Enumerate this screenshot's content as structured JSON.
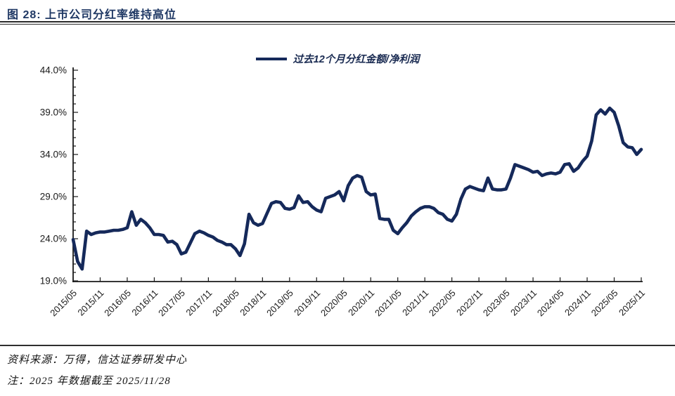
{
  "header": {
    "title": "图 28: 上市公司分红率维持高位"
  },
  "legend": {
    "label": "过去12个月分红金额/净利润"
  },
  "footer": {
    "source": "资料来源：万得，信达证券研发中心",
    "note": "注：2025 年数据截至 2025/11/28"
  },
  "colors": {
    "line_navy": "#15295a",
    "title_navy": "#1f3864",
    "axis_black": "#1a1a1a"
  },
  "chart_data": {
    "type": "line",
    "title": "上市公司分红率维持高位",
    "series_name": "过去12个月分红金额/净利润",
    "ylabel": "",
    "xlabel": "",
    "ylim": [
      19,
      44
    ],
    "y_tick_step": 5,
    "y_tick_labels": [
      "19.0%",
      "24.0%",
      "29.0%",
      "34.0%",
      "39.0%",
      "44.0%"
    ],
    "x_tick_every": 6,
    "x_tick_labels": [
      "2015/05",
      "2015/11",
      "2016/05",
      "2016/11",
      "2017/05",
      "2017/11",
      "2018/05",
      "2018/11",
      "2019/05",
      "2019/11",
      "2020/05",
      "2020/11",
      "2021/05",
      "2021/11",
      "2022/05",
      "2022/11",
      "2023/05",
      "2023/11",
      "2024/05",
      "2024/11",
      "2025/05",
      "2025/11"
    ],
    "grid": false,
    "legend_position": "top-center",
    "line_color": "#15295a",
    "x": [
      "2015/05",
      "2015/06",
      "2015/07",
      "2015/08",
      "2015/09",
      "2015/10",
      "2015/11",
      "2015/12",
      "2016/01",
      "2016/02",
      "2016/03",
      "2016/04",
      "2016/05",
      "2016/06",
      "2016/07",
      "2016/08",
      "2016/09",
      "2016/10",
      "2016/11",
      "2016/12",
      "2017/01",
      "2017/02",
      "2017/03",
      "2017/04",
      "2017/05",
      "2017/06",
      "2017/07",
      "2017/08",
      "2017/09",
      "2017/10",
      "2017/11",
      "2017/12",
      "2018/01",
      "2018/02",
      "2018/03",
      "2018/04",
      "2018/05",
      "2018/06",
      "2018/07",
      "2018/08",
      "2018/09",
      "2018/10",
      "2018/11",
      "2018/12",
      "2019/01",
      "2019/02",
      "2019/03",
      "2019/04",
      "2019/05",
      "2019/06",
      "2019/07",
      "2019/08",
      "2019/09",
      "2019/10",
      "2019/11",
      "2019/12",
      "2020/01",
      "2020/02",
      "2020/03",
      "2020/04",
      "2020/05",
      "2020/06",
      "2020/07",
      "2020/08",
      "2020/09",
      "2020/10",
      "2020/11",
      "2020/12",
      "2021/01",
      "2021/02",
      "2021/03",
      "2021/04",
      "2021/05",
      "2021/06",
      "2021/07",
      "2021/08",
      "2021/09",
      "2021/10",
      "2021/11",
      "2021/12",
      "2022/01",
      "2022/02",
      "2022/03",
      "2022/04",
      "2022/05",
      "2022/06",
      "2022/07",
      "2022/08",
      "2022/09",
      "2022/10",
      "2022/11",
      "2022/12",
      "2023/01",
      "2023/02",
      "2023/03",
      "2023/04",
      "2023/05",
      "2023/06",
      "2023/07",
      "2023/08",
      "2023/09",
      "2023/10",
      "2023/11",
      "2023/12",
      "2024/01",
      "2024/02",
      "2024/03",
      "2024/04",
      "2024/05",
      "2024/06",
      "2024/07",
      "2024/08",
      "2024/09",
      "2024/10",
      "2024/11",
      "2024/12",
      "2025/01",
      "2025/02",
      "2025/03",
      "2025/04",
      "2025/05",
      "2025/06",
      "2025/07",
      "2025/08",
      "2025/09",
      "2025/10",
      "2025/11"
    ],
    "values": [
      23.9,
      21.3,
      20.4,
      24.9,
      24.5,
      24.7,
      24.8,
      24.8,
      24.9,
      25.0,
      25.0,
      25.1,
      25.3,
      27.2,
      25.6,
      26.3,
      25.9,
      25.3,
      24.5,
      24.5,
      24.4,
      23.6,
      23.7,
      23.3,
      22.2,
      22.4,
      23.5,
      24.6,
      24.9,
      24.7,
      24.4,
      24.2,
      23.8,
      23.6,
      23.3,
      23.3,
      22.8,
      22.0,
      23.4,
      26.9,
      25.9,
      25.6,
      25.8,
      27.0,
      28.2,
      28.4,
      28.3,
      27.6,
      27.5,
      27.7,
      29.1,
      28.3,
      28.4,
      27.8,
      27.4,
      27.2,
      28.8,
      29.0,
      29.2,
      29.6,
      28.5,
      30.3,
      31.2,
      31.5,
      31.3,
      29.6,
      29.2,
      29.3,
      26.4,
      26.3,
      26.3,
      25.0,
      24.6,
      25.3,
      25.9,
      26.7,
      27.2,
      27.6,
      27.8,
      27.8,
      27.6,
      27.1,
      26.9,
      26.3,
      26.1,
      26.9,
      28.7,
      29.9,
      30.2,
      30.0,
      29.8,
      29.7,
      31.2,
      29.9,
      29.8,
      29.8,
      29.9,
      31.2,
      32.8,
      32.6,
      32.4,
      32.2,
      31.9,
      32.0,
      31.5,
      31.7,
      31.8,
      31.7,
      31.9,
      32.8,
      32.9,
      32.0,
      32.4,
      33.2,
      33.8,
      35.6,
      38.7,
      39.3,
      38.8,
      39.5,
      39.0,
      37.4,
      35.4,
      34.9,
      34.8,
      34.0,
      34.6
    ]
  }
}
